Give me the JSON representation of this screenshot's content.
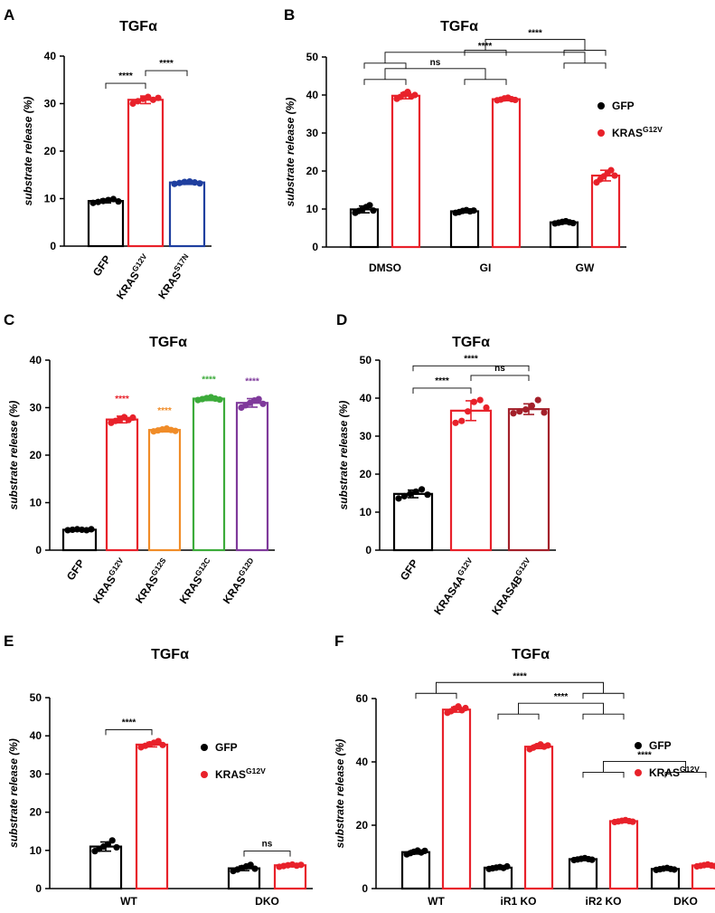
{
  "figure": {
    "panels": [
      "A",
      "B",
      "C",
      "D",
      "E",
      "F"
    ]
  },
  "chart_data": [
    {
      "panel": "A",
      "type": "bar",
      "title": "TGFα",
      "ylabel": "substrate release (%)",
      "ylim": [
        0,
        40
      ],
      "yticks": [
        "0",
        "10",
        "20",
        "30",
        "40"
      ],
      "categories": [
        {
          "base": "GFP",
          "sup": ""
        },
        {
          "base": "KRAS",
          "sup": "G12V"
        },
        {
          "base": "KRAS",
          "sup": "S17N"
        }
      ],
      "colors": [
        "#000000",
        "#e8212a",
        "#1f3f9f"
      ],
      "values": [
        9.5,
        30.8,
        13.4
      ],
      "errors": [
        0.4,
        0.8,
        0.4
      ],
      "points": [
        [
          9.1,
          9.3,
          9.5,
          9.7,
          9.9,
          9.4
        ],
        [
          30.0,
          30.5,
          31.0,
          31.4,
          30.8,
          31.2
        ],
        [
          13.1,
          13.3,
          13.5,
          13.6,
          13.4,
          13.2
        ]
      ],
      "comparisons": [
        {
          "text": "****",
          "bars": [
            0,
            1
          ]
        },
        {
          "text": "****",
          "bars": [
            1,
            2
          ]
        }
      ],
      "legend": []
    },
    {
      "panel": "B",
      "type": "bar",
      "title": "TGFα",
      "ylabel": "substrate release (%)",
      "ylim": [
        0,
        50
      ],
      "yticks": [
        "0",
        "10",
        "20",
        "30",
        "40",
        "50"
      ],
      "groups": [
        "DMSO",
        "GI",
        "GW"
      ],
      "series": [
        {
          "name": "GFP",
          "color": "#000000",
          "values": [
            9.9,
            9.4,
            6.5
          ],
          "errors": [
            0.9,
            0.4,
            0.4
          ],
          "points": [
            [
              9.0,
              9.5,
              10.0,
              10.5,
              11.0,
              9.6
            ],
            [
              9.0,
              9.2,
              9.5,
              9.7,
              9.4,
              9.6
            ],
            [
              6.2,
              6.4,
              6.6,
              6.8,
              6.5,
              6.3
            ]
          ]
        },
        {
          "name": "KRAS",
          "sup": "G12V",
          "color": "#e8212a",
          "values": [
            39.8,
            38.9,
            18.8
          ],
          "errors": [
            0.8,
            0.4,
            1.4
          ],
          "points": [
            [
              39.0,
              39.5,
              40.2,
              40.8,
              39.6,
              40.0
            ],
            [
              38.6,
              38.8,
              39.1,
              39.3,
              38.9,
              38.7
            ],
            [
              17.0,
              17.8,
              18.6,
              19.4,
              20.2,
              18.8
            ]
          ]
        }
      ],
      "comparisons": [
        {
          "text": "ns",
          "from": [
            0,
            0
          ],
          "to": [
            1,
            0
          ]
        },
        {
          "text": "****",
          "from": [
            0,
            0
          ],
          "to": [
            2,
            0
          ]
        },
        {
          "text": "****",
          "from": [
            1,
            0
          ],
          "to": [
            2,
            0
          ]
        }
      ],
      "legend": [
        {
          "name": "GFP",
          "sup": "",
          "color": "#000000"
        },
        {
          "name": "KRAS",
          "sup": "G12V",
          "color": "#e8212a"
        }
      ]
    },
    {
      "panel": "C",
      "type": "bar",
      "title": "TGFα",
      "ylabel": "substrate release (%)",
      "ylim": [
        0,
        40
      ],
      "yticks": [
        "0",
        "10",
        "20",
        "30",
        "40"
      ],
      "categories": [
        {
          "base": "GFP",
          "sup": ""
        },
        {
          "base": "KRAS",
          "sup": "G12V"
        },
        {
          "base": "KRAS",
          "sup": "G12S"
        },
        {
          "base": "KRAS",
          "sup": "G12C"
        },
        {
          "base": "KRAS",
          "sup": "G12D"
        }
      ],
      "colors": [
        "#000000",
        "#e8212a",
        "#f08c28",
        "#3cab3a",
        "#7f3a9b"
      ],
      "values": [
        4.3,
        27.5,
        25.3,
        31.9,
        31.0
      ],
      "errors": [
        0.2,
        0.7,
        0.4,
        0.4,
        0.9
      ],
      "points": [
        [
          4.2,
          4.3,
          4.4,
          4.3,
          4.2,
          4.4
        ],
        [
          26.8,
          27.2,
          27.6,
          28.0,
          27.4,
          27.9
        ],
        [
          25.0,
          25.2,
          25.4,
          25.6,
          25.3,
          25.1
        ],
        [
          31.6,
          31.8,
          32.0,
          32.2,
          31.9,
          31.7
        ],
        [
          30.0,
          30.5,
          31.0,
          31.5,
          31.8,
          30.8
        ]
      ],
      "annotations": [
        {
          "bar": 1,
          "text": "****"
        },
        {
          "bar": 2,
          "text": "****"
        },
        {
          "bar": 3,
          "text": "****"
        },
        {
          "bar": 4,
          "text": "****"
        }
      ],
      "comparisons": [],
      "legend": []
    },
    {
      "panel": "D",
      "type": "bar",
      "title": "TGFα",
      "ylabel": "substrate release (%)",
      "ylim": [
        0,
        50
      ],
      "yticks": [
        "0",
        "10",
        "20",
        "30",
        "40",
        "50"
      ],
      "categories": [
        {
          "base": "GFP",
          "sup": ""
        },
        {
          "base": "KRAS4A",
          "sup": "G12V"
        },
        {
          "base": "KRAS4B",
          "sup": "G12V"
        }
      ],
      "colors": [
        "#000000",
        "#e8212a",
        "#a3202a"
      ],
      "values": [
        14.8,
        36.7,
        37.1
      ],
      "errors": [
        1.0,
        2.6,
        1.4
      ],
      "points": [
        [
          13.6,
          14.2,
          14.8,
          15.4,
          16.0,
          14.6
        ],
        [
          33.5,
          34.0,
          36.5,
          39.0,
          39.5,
          37.5
        ],
        [
          36.0,
          36.5,
          37.0,
          38.0,
          39.5,
          36.2
        ]
      ],
      "comparisons": [
        {
          "text": "****",
          "bars": [
            0,
            1
          ]
        },
        {
          "text": "ns",
          "bars": [
            1,
            2
          ]
        },
        {
          "text": "****",
          "bars": [
            0,
            2
          ]
        }
      ],
      "legend": []
    },
    {
      "panel": "E",
      "type": "bar",
      "title": "TGFα",
      "ylabel": "substrate release (%)",
      "ylim": [
        0,
        50
      ],
      "yticks": [
        "0",
        "10",
        "20",
        "30",
        "40",
        "50"
      ],
      "groups": [
        "WT",
        "DKO"
      ],
      "series": [
        {
          "name": "GFP",
          "color": "#000000",
          "values": [
            11.0,
            5.3
          ],
          "errors": [
            1.2,
            0.6
          ],
          "points": [
            [
              9.8,
              10.4,
              11.0,
              11.6,
              12.6,
              10.8
            ],
            [
              4.6,
              5.0,
              5.4,
              5.8,
              6.2,
              5.2
            ]
          ]
        },
        {
          "name": "KRAS",
          "sup": "G12V",
          "color": "#e8212a",
          "values": [
            37.7,
            6.1
          ],
          "errors": [
            0.6,
            0.4
          ],
          "points": [
            [
              37.0,
              37.4,
              37.8,
              38.2,
              38.6,
              37.6
            ],
            [
              5.7,
              5.9,
              6.1,
              6.3,
              6.0,
              6.2
            ]
          ]
        }
      ],
      "comparisons": [
        {
          "text": "****",
          "from": [
            0,
            0
          ],
          "to": [
            0,
            1
          ]
        },
        {
          "text": "ns",
          "from": [
            1,
            0
          ],
          "to": [
            1,
            1
          ]
        }
      ],
      "legend": [
        {
          "name": "GFP",
          "sup": "",
          "color": "#000000"
        },
        {
          "name": "KRAS",
          "sup": "G12V",
          "color": "#e8212a"
        }
      ]
    },
    {
      "panel": "F",
      "type": "bar",
      "title": "TGFα",
      "ylabel": "substrate release (%)",
      "ylim": [
        0,
        60
      ],
      "yticks": [
        "0",
        "20",
        "40",
        "60"
      ],
      "groups": [
        "WT",
        "iR1 KO",
        "iR2 KO",
        "DKO"
      ],
      "series": [
        {
          "name": "GFP",
          "color": "#000000",
          "values": [
            11.5,
            6.6,
            9.3,
            6.2
          ],
          "errors": [
            0.6,
            0.4,
            0.4,
            0.4
          ],
          "points": [
            [
              10.8,
              11.2,
              11.6,
              12.0,
              11.4,
              11.9
            ],
            [
              6.2,
              6.4,
              6.6,
              6.8,
              6.5,
              7.0
            ],
            [
              9.0,
              9.2,
              9.4,
              9.6,
              9.3,
              9.1
            ],
            [
              5.9,
              6.1,
              6.3,
              6.5,
              6.2,
              6.0
            ]
          ]
        },
        {
          "name": "KRAS",
          "sup": "G12V",
          "color": "#e8212a",
          "values": [
            56.5,
            44.8,
            21.3,
            7.3
          ],
          "errors": [
            0.8,
            0.6,
            0.4,
            0.4
          ],
          "points": [
            [
              55.5,
              56.0,
              56.8,
              57.5,
              56.3,
              57.0
            ],
            [
              44.0,
              44.5,
              45.0,
              45.5,
              44.8,
              45.2
            ],
            [
              21.0,
              21.2,
              21.4,
              21.6,
              21.3,
              21.1
            ],
            [
              7.0,
              7.2,
              7.4,
              7.6,
              7.3,
              7.1
            ]
          ]
        }
      ],
      "comparisons": [
        {
          "text": "****",
          "from": [
            0,
            0
          ],
          "to": [
            2,
            0
          ]
        },
        {
          "text": "****",
          "from": [
            1,
            0
          ],
          "to": [
            2,
            0
          ]
        },
        {
          "text": "****",
          "from": [
            2,
            0
          ],
          "to": [
            3,
            0
          ]
        }
      ],
      "legend": [
        {
          "name": "GFP",
          "sup": "",
          "color": "#000000"
        },
        {
          "name": "KRAS",
          "sup": "G12V",
          "color": "#e8212a"
        }
      ]
    }
  ]
}
